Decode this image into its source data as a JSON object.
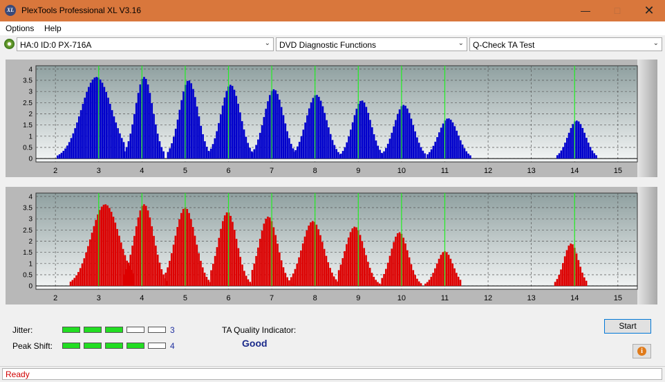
{
  "window": {
    "title": "PlexTools Professional XL V3.16",
    "icon_text": "XL",
    "icon": "plextools-app-icon",
    "minimize_icon": "minimize-icon",
    "maximize_icon": "maximize-icon",
    "close_icon": "close-icon"
  },
  "menu": {
    "items": [
      {
        "label": "Options"
      },
      {
        "label": "Help"
      }
    ]
  },
  "toolbar": {
    "drive_select": "HA:0 ID:0  PX-716A",
    "drive_icon": "disc-drive-icon",
    "function_select": "DVD Diagnostic Functions",
    "test_select": "Q-Check TA Test",
    "dropdown_icon": "chevron-down-icon"
  },
  "chart_data": [
    {
      "type": "bar",
      "name": "",
      "color": "#0000cc",
      "x_ticks": [
        "2",
        "3",
        "4",
        "5",
        "6",
        "7",
        "8",
        "9",
        "10",
        "11",
        "12",
        "13",
        "15"
      ],
      "x_ticks_full": [
        "2",
        "3",
        "4",
        "5",
        "6",
        "7",
        "8",
        "9",
        "10",
        "11",
        "12",
        "13",
        "14",
        "15"
      ],
      "y_ticks": [
        "0",
        "0.5",
        "1",
        "1.5",
        "2",
        "2.5",
        "3",
        "3.5",
        "4"
      ],
      "xlim": [
        1.55,
        15.45
      ],
      "ylim": [
        -0.15,
        4.15
      ],
      "marker_lines": [
        3,
        4,
        5,
        6,
        7,
        8,
        9,
        10,
        11,
        14
      ],
      "peaks": [
        {
          "center": 2.95,
          "peak": 3.65,
          "start": 2.05,
          "end": 3.6
        },
        {
          "center": 4.05,
          "peak": 3.65,
          "start": 3.6,
          "end": 4.5
        },
        {
          "center": 5.08,
          "peak": 3.5,
          "start": 4.6,
          "end": 5.55
        },
        {
          "center": 6.05,
          "peak": 3.3,
          "start": 5.55,
          "end": 6.55
        },
        {
          "center": 7.05,
          "peak": 3.1,
          "start": 6.55,
          "end": 7.55
        },
        {
          "center": 8.03,
          "peak": 2.85,
          "start": 7.55,
          "end": 8.6
        },
        {
          "center": 9.08,
          "peak": 2.6,
          "start": 8.6,
          "end": 9.55
        },
        {
          "center": 10.05,
          "peak": 2.4,
          "start": 9.55,
          "end": 10.55
        },
        {
          "center": 11.08,
          "peak": 1.8,
          "start": 10.6,
          "end": 11.6
        },
        {
          "center": 14.05,
          "peak": 1.7,
          "start": 13.6,
          "end": 14.5
        }
      ]
    },
    {
      "type": "bar",
      "name": "",
      "color": "#dd0000",
      "x_ticks": [
        "2",
        "3",
        "4",
        "5",
        "6",
        "7",
        "8",
        "9",
        "10",
        "11",
        "12",
        "13",
        "14",
        "15"
      ],
      "y_ticks": [
        "0",
        "0.5",
        "1",
        "1.5",
        "2",
        "2.5",
        "3",
        "3.5",
        "4"
      ],
      "xlim": [
        1.55,
        15.45
      ],
      "ylim": [
        -0.15,
        4.15
      ],
      "marker_lines": [
        3,
        4,
        5,
        6,
        7,
        8,
        9,
        10,
        11,
        14
      ],
      "peaks": [
        {
          "center": 3.15,
          "peak": 3.65,
          "start": 2.35,
          "end": 3.8
        },
        {
          "center": 4.05,
          "peak": 3.65,
          "start": 3.6,
          "end": 4.6
        },
        {
          "center": 5.0,
          "peak": 3.5,
          "start": 4.55,
          "end": 5.6
        },
        {
          "center": 5.98,
          "peak": 3.3,
          "start": 5.6,
          "end": 6.55
        },
        {
          "center": 6.92,
          "peak": 3.1,
          "start": 6.55,
          "end": 7.5
        },
        {
          "center": 7.95,
          "peak": 2.9,
          "start": 7.45,
          "end": 8.55
        },
        {
          "center": 8.92,
          "peak": 2.65,
          "start": 8.55,
          "end": 9.55
        },
        {
          "center": 9.95,
          "peak": 2.4,
          "start": 9.55,
          "end": 10.45
        },
        {
          "center": 11.0,
          "peak": 1.55,
          "start": 10.55,
          "end": 11.4
        },
        {
          "center": 13.92,
          "peak": 1.9,
          "start": 13.55,
          "end": 14.3
        }
      ]
    }
  ],
  "results": {
    "jitter_label": "Jitter:",
    "jitter_value": "3",
    "jitter_level": 3,
    "peak_shift_label": "Peak Shift:",
    "peak_shift_value": "4",
    "peak_shift_level": 4,
    "meter_max": 5,
    "quality_label": "TA Quality Indicator:",
    "quality_value": "Good"
  },
  "buttons": {
    "start": "Start",
    "info_icon": "info-icon"
  },
  "status": {
    "text": "Ready"
  }
}
